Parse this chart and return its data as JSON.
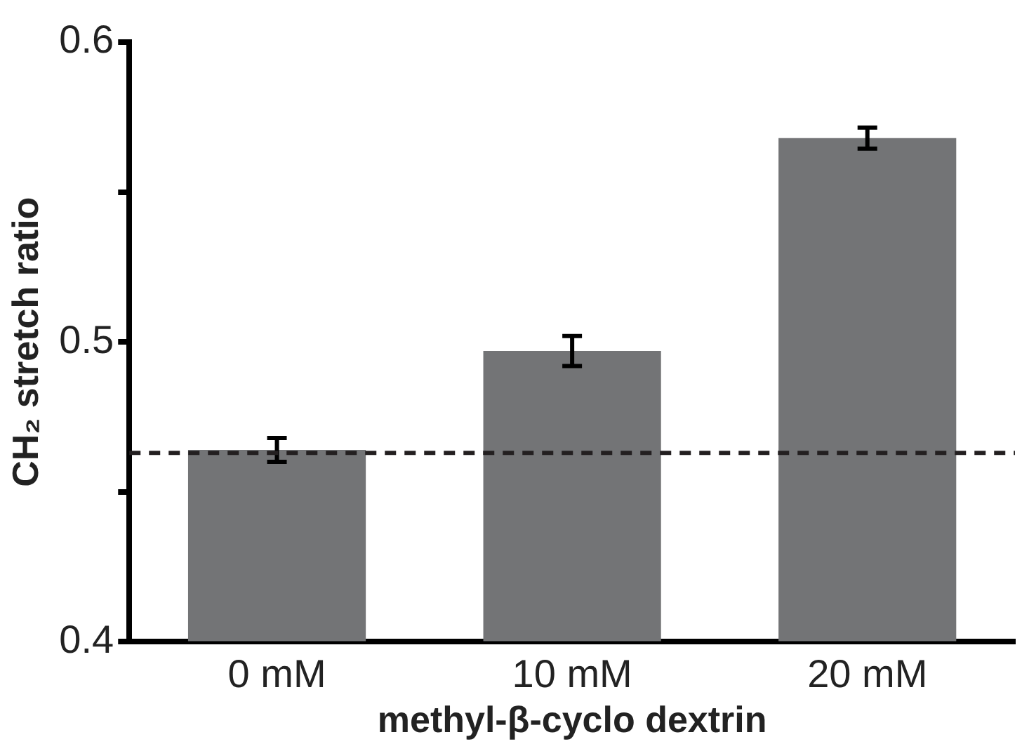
{
  "chart_data": {
    "type": "bar",
    "xlabel": "methyl-β-cyclo dextrin",
    "ylabel": "CH₂ stretch ratio",
    "categories": [
      "0 mM",
      "10 mM",
      "20 mM"
    ],
    "values": [
      0.464,
      0.497,
      0.568
    ],
    "errors": [
      0.004,
      0.005,
      0.0035
    ],
    "color": "#737476",
    "ylim": [
      0.4,
      0.6
    ],
    "yticks": [
      0.4,
      {
        "value": 0.45,
        "label": null
      },
      0.5,
      {
        "value": 0.55,
        "label": null
      },
      0.6
    ],
    "ref_lines": [
      {
        "axis": "y",
        "value": 0.463,
        "color": "#231f20",
        "line_style": "dashed"
      }
    ],
    "grid": false,
    "legend": false
  }
}
